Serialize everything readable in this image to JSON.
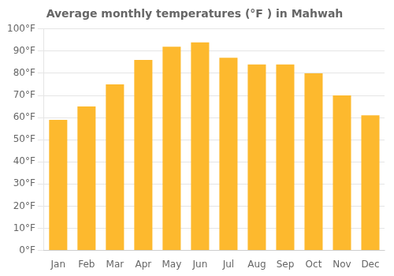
{
  "chart_data": {
    "type": "bar",
    "title": "Average monthly temperatures (°F ) in Mahwah",
    "categories": [
      "Jan",
      "Feb",
      "Mar",
      "Apr",
      "May",
      "Jun",
      "Jul",
      "Aug",
      "Sep",
      "Oct",
      "Nov",
      "Dec"
    ],
    "values": [
      59,
      65,
      75,
      86,
      92,
      94,
      87,
      84,
      84,
      80,
      70,
      61
    ],
    "color": "#FDB92E",
    "ylim": [
      0,
      100
    ],
    "yticks": [
      {
        "value": 0,
        "label": "0°F"
      },
      {
        "value": 10,
        "label": "10°F"
      },
      {
        "value": 20,
        "label": "20°F"
      },
      {
        "value": 30,
        "label": "30°F"
      },
      {
        "value": 40,
        "label": "40°F"
      },
      {
        "value": 50,
        "label": "50°F"
      },
      {
        "value": 60,
        "label": "60°F"
      },
      {
        "value": 70,
        "label": "70°F"
      },
      {
        "value": 80,
        "label": "80°F"
      },
      {
        "value": 90,
        "label": "90°F"
      },
      {
        "value": 100,
        "label": "100°F"
      }
    ],
    "grid": true
  }
}
